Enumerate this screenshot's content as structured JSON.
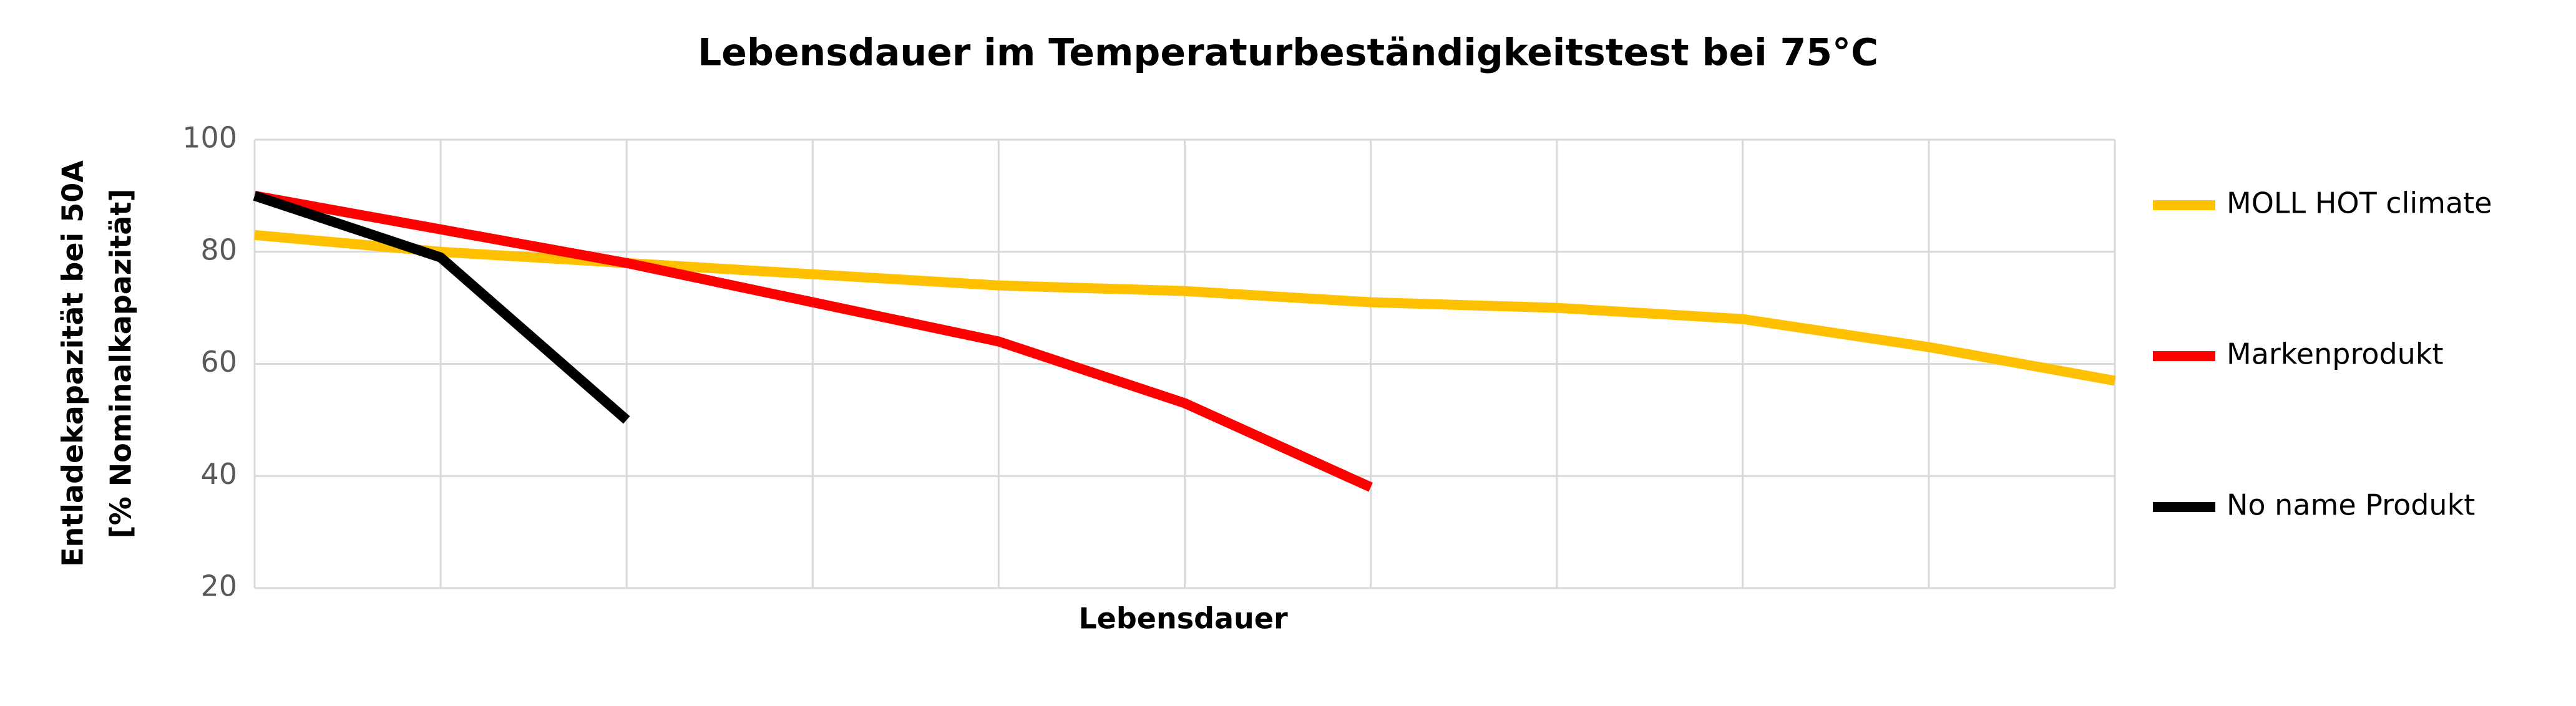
{
  "chart_data": {
    "type": "line",
    "title": "Lebensdauer im Temperaturbeständigkeitstest bei 75°C",
    "x_label": "Lebensdauer",
    "y_label": [
      "Entladekapazität bei 50A",
      "[% Nominalkapazität]"
    ],
    "categories": [
      null,
      null,
      null,
      null,
      null,
      null,
      null,
      null,
      null,
      null,
      null
    ],
    "series": [
      {
        "name": "MOLL HOT climate",
        "color": "#ffc000",
        "values": [
          83,
          80,
          78,
          76,
          74,
          73,
          71,
          70,
          68,
          63,
          57
        ]
      },
      {
        "name": "Markenprodukt",
        "color": "#ff0000",
        "values": [
          90,
          84,
          78,
          71,
          64,
          53,
          38,
          null,
          null,
          null,
          null
        ]
      },
      {
        "name": "No name Produkt",
        "color": "#000000",
        "values": [
          90,
          79,
          50,
          null,
          null,
          null,
          null,
          null,
          null,
          null,
          null
        ]
      }
    ],
    "ylim": [
      20,
      100
    ],
    "yticks": [
      20,
      40,
      60,
      80,
      100
    ],
    "grid": true,
    "legend": "right"
  }
}
